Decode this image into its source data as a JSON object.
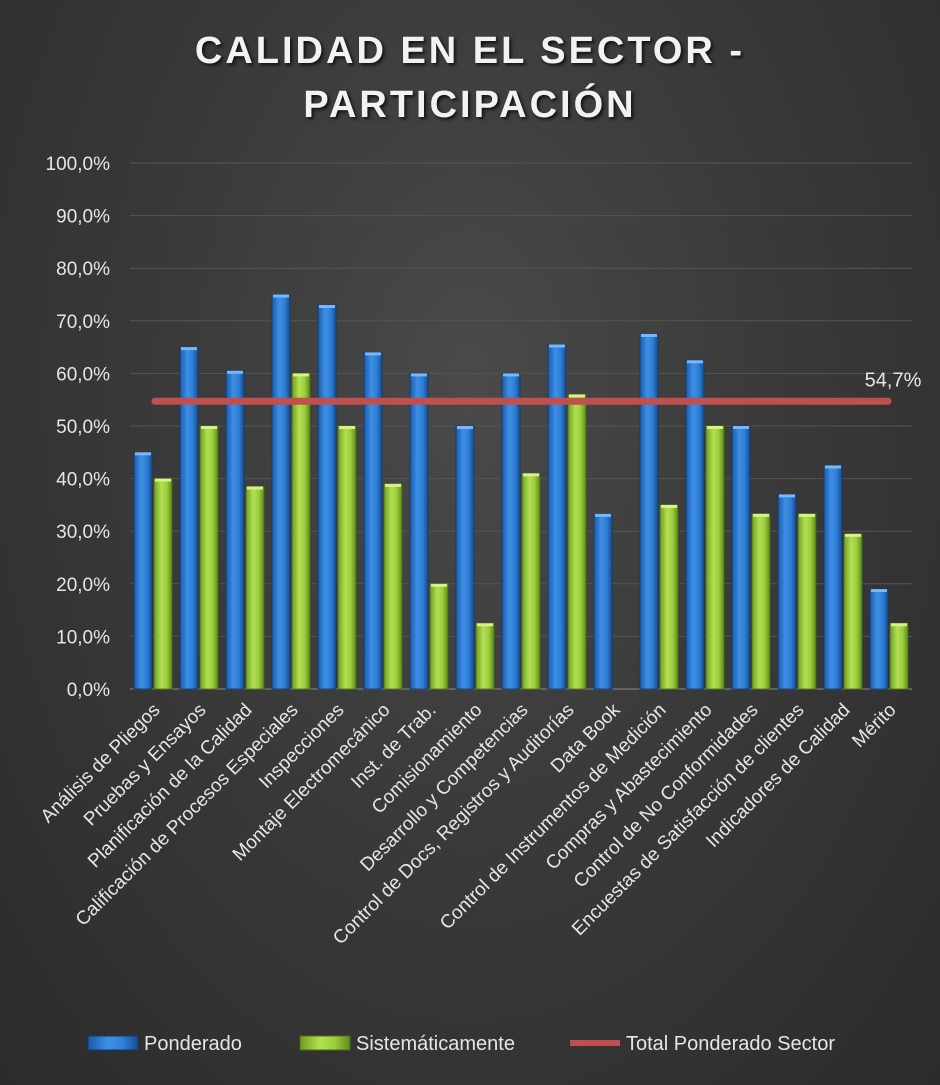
{
  "chart_data": {
    "type": "bar",
    "title_line1": "CALIDAD EN EL SECTOR -",
    "title_line2": "PARTICIPACIÓN",
    "xlabel": "",
    "ylabel": "",
    "ylim": [
      0,
      100
    ],
    "yticks": [
      "0,0%",
      "10,0%",
      "20,0%",
      "30,0%",
      "40,0%",
      "50,0%",
      "60,0%",
      "70,0%",
      "80,0%",
      "90,0%",
      "100,0%"
    ],
    "grid": true,
    "legend_position": "bottom",
    "categories": [
      "Análisis de Pliegos",
      "Pruebas y Ensayos",
      "Planificación de la Calidad",
      "Calificación de Procesos Especiales",
      "Inspecciones",
      "Montaje Electromecánico",
      "Inst. de Trab.",
      "Comisionamiento",
      "Desarrollo y Competencias",
      "Control de Docs, Registros y Auditorías",
      "Data Book",
      "Control de Instrumentos de Medición",
      "Compras y Abastecimiento",
      "Control de No Conformidades",
      "Encuestas de Satisfacción de clientes",
      "Indicadores de Calidad",
      "Mérito"
    ],
    "series": [
      {
        "name": "Ponderado",
        "color": "#2f7fd6",
        "values": [
          45,
          65,
          60.5,
          75,
          73,
          64,
          60,
          50,
          60,
          65.5,
          33.3,
          67.5,
          62.5,
          50,
          37,
          42.5,
          19
        ]
      },
      {
        "name": "Sistemáticamente",
        "color": "#9bcf3c",
        "values": [
          40,
          50,
          38.5,
          60,
          50,
          39,
          20,
          12.5,
          41,
          56,
          0,
          35,
          50,
          33.3,
          33.3,
          29.5,
          12.5
        ]
      }
    ],
    "reference_line": {
      "name": "Total Ponderado Sector",
      "value": 54.7,
      "label": "54,7%",
      "color": "#c0504d"
    }
  }
}
